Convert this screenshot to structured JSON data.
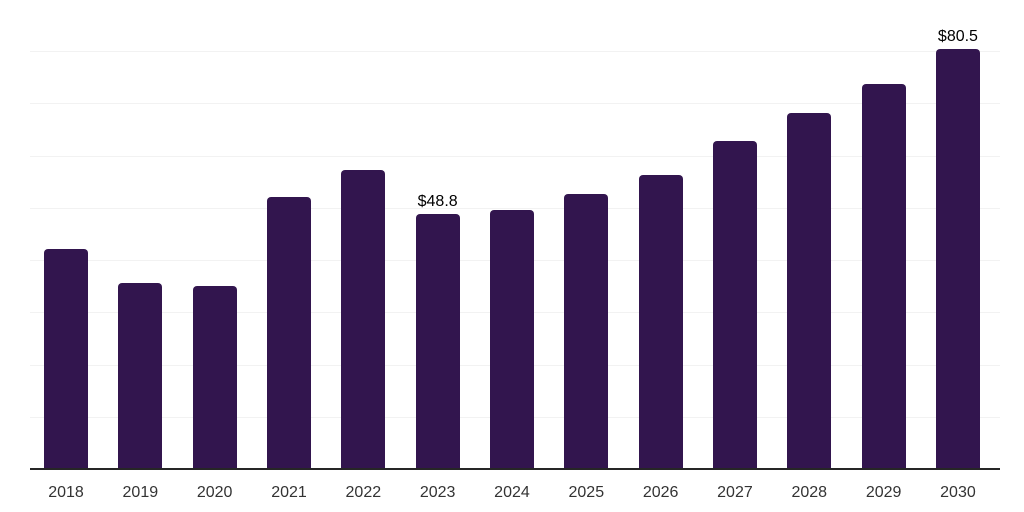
{
  "chart_data": {
    "type": "bar",
    "title": "",
    "xlabel": "",
    "ylabel": "",
    "categories": [
      "2018",
      "2019",
      "2020",
      "2021",
      "2022",
      "2023",
      "2024",
      "2025",
      "2026",
      "2027",
      "2028",
      "2029",
      "2030"
    ],
    "values": [
      42.1,
      35.6,
      35.0,
      52.1,
      57.2,
      48.8,
      49.6,
      52.7,
      56.4,
      62.9,
      68.1,
      73.7,
      80.5
    ],
    "data_labels": [
      "",
      "",
      "",
      "",
      "",
      "$48.8",
      "",
      "",
      "",
      "",
      "",
      "",
      "$80.5"
    ],
    "ylim": [
      0,
      90
    ],
    "gridline_step": 10,
    "grid": "horizontal",
    "y_tick_labels_visible": false,
    "legend": "none",
    "colors": {
      "bar": "#32154e",
      "axis": "#262626",
      "gridline": "#f2f2f2",
      "data_label": "#000000",
      "tick_label": "#333333",
      "background": "#ffffff"
    }
  }
}
